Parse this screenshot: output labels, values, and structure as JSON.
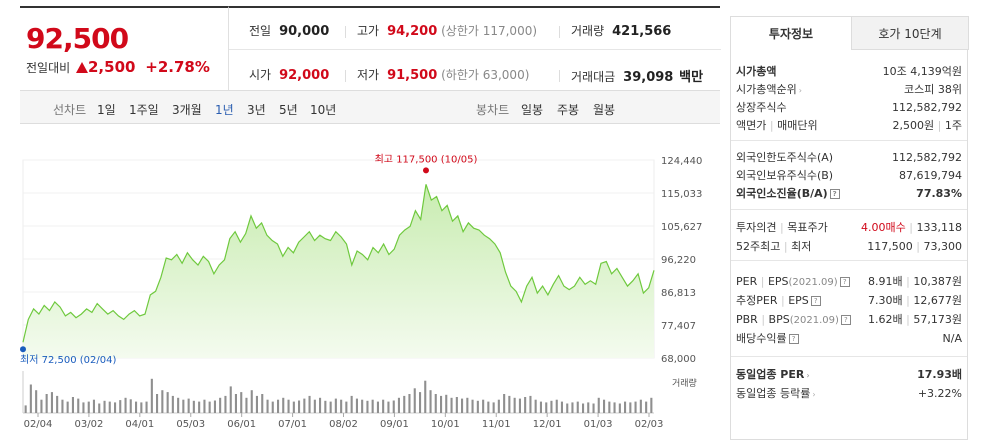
{
  "header": {
    "current_price": "92,500",
    "change_label": "전일대비",
    "change_amount": "2,500",
    "change_pct": "+2.78%"
  },
  "summary": {
    "prev_close_label": "전일",
    "prev_close": "90,000",
    "high_label": "고가",
    "high": "94,200",
    "upper_limit": "(상한가 117,000)",
    "volume_label": "거래량",
    "volume": "421,566",
    "open_label": "시가",
    "open": "92,000",
    "low_label": "저가",
    "low": "91,500",
    "lower_limit": "(하한가 63,000)",
    "amount_label": "거래대금",
    "amount": "39,098",
    "amount_unit": "백만"
  },
  "toolbar": {
    "line_chart_label": "선차트",
    "periods": [
      "1일",
      "1주일",
      "3개월",
      "1년",
      "3년",
      "5년",
      "10년"
    ],
    "selected_period": "1년",
    "candle_label": "봉차트",
    "candles": [
      "일봉",
      "주봉",
      "월봉"
    ]
  },
  "chart_data": {
    "type": "area",
    "y_ticks": [
      "124,440",
      "115,033",
      "105,627",
      "96,220",
      "86,813",
      "77,407",
      "68,000"
    ],
    "ylim": [
      68000,
      124440
    ],
    "x_ticks": [
      "02/04",
      "03/02",
      "04/01",
      "05/03",
      "06/01",
      "07/01",
      "08/02",
      "09/01",
      "10/01",
      "11/01",
      "12/01",
      "01/03",
      "02/03"
    ],
    "max_label": "최고 117,500 (10/05)",
    "min_label": "최저 72,500 (02/04)",
    "volume_label": "거래량",
    "colors": {
      "line": "#6fc93e",
      "fill_top": "#c8ecb0",
      "max": "#d1091a",
      "min": "#1a5dbd"
    },
    "series": [
      {
        "values": [
          72500,
          79000,
          82000,
          80500,
          83000,
          81500,
          84000,
          82500,
          80000,
          81000,
          79500,
          80500,
          82000,
          81000,
          83500,
          82000,
          80500,
          81500,
          80000,
          79000,
          80500,
          81500,
          80000,
          80500,
          86000,
          87000,
          91000,
          96500,
          96000,
          97500,
          95000,
          98000,
          96000,
          94500,
          97000,
          95500,
          92000,
          94500,
          96000,
          102000,
          104000,
          101000,
          103500,
          108500,
          105000,
          106500,
          103000,
          101500,
          100500,
          97000,
          99500,
          98000,
          101000,
          102500,
          104000,
          101500,
          103000,
          102000,
          101500,
          104000,
          102500,
          100500,
          94500,
          98500,
          97500,
          96000,
          99500,
          98000,
          100500,
          97500,
          99000,
          103000,
          104500,
          105500,
          110000,
          107500,
          117500,
          113000,
          114000,
          110000,
          111500,
          107000,
          108500,
          104000,
          106500,
          105000,
          104500,
          103000,
          102000,
          100500,
          98000,
          92500,
          88500,
          87000,
          84000,
          88500,
          91000,
          86500,
          88500,
          86000,
          89000,
          91500,
          88500,
          87500,
          88500,
          91000,
          89000,
          90000,
          89000,
          95000,
          95500,
          92000,
          93500,
          91000,
          88500,
          90000,
          92000,
          86500,
          88000,
          93000
        ]
      }
    ],
    "volumes": [
      0.2,
      0.75,
      0.6,
      0.35,
      0.5,
      0.55,
      0.45,
      0.35,
      0.3,
      0.42,
      0.38,
      0.28,
      0.3,
      0.35,
      0.25,
      0.32,
      0.3,
      0.28,
      0.34,
      0.4,
      0.36,
      0.3,
      0.28,
      0.3,
      0.9,
      0.5,
      0.6,
      0.55,
      0.45,
      0.4,
      0.35,
      0.38,
      0.32,
      0.3,
      0.35,
      0.3,
      0.33,
      0.4,
      0.45,
      0.7,
      0.5,
      0.55,
      0.4,
      0.6,
      0.45,
      0.5,
      0.35,
      0.3,
      0.35,
      0.4,
      0.35,
      0.3,
      0.33,
      0.38,
      0.45,
      0.35,
      0.4,
      0.32,
      0.3,
      0.38,
      0.35,
      0.3,
      0.45,
      0.38,
      0.35,
      0.32,
      0.35,
      0.3,
      0.35,
      0.3,
      0.33,
      0.4,
      0.45,
      0.5,
      0.65,
      0.55,
      0.85,
      0.6,
      0.5,
      0.45,
      0.48,
      0.4,
      0.42,
      0.38,
      0.4,
      0.35,
      0.32,
      0.35,
      0.3,
      0.28,
      0.35,
      0.5,
      0.45,
      0.4,
      0.38,
      0.42,
      0.45,
      0.35,
      0.3,
      0.28,
      0.32,
      0.35,
      0.3,
      0.25,
      0.28,
      0.3,
      0.25,
      0.28,
      0.25,
      0.4,
      0.35,
      0.3,
      0.28,
      0.25,
      0.3,
      0.28,
      0.3,
      0.35,
      0.3,
      0.4
    ]
  },
  "panel": {
    "tab_info": "투자정보",
    "tab_quote": "호가 10단계",
    "market_cap_label": "시가총액",
    "market_cap": "10조 4,139억원",
    "rank_label": "시가총액순위",
    "rank": "코스피 38위",
    "shares_label": "상장주식수",
    "shares": "112,582,792",
    "par_label": "액면가",
    "unit_label": "매매단위",
    "par_value": "2,500원",
    "unit_value": "1주",
    "foreign_limit_label": "외국인한도주식수(A)",
    "foreign_limit": "112,582,792",
    "foreign_hold_label": "외국인보유주식수(B)",
    "foreign_hold": "87,619,794",
    "foreign_ratio_label": "외국인소진율(B/A)",
    "foreign_ratio": "77.83%",
    "opinion_label": "투자의견",
    "target_label": "목표주가",
    "opinion": "4.00매수",
    "target": "133,118",
    "w52_label": "52주최고",
    "w52_low_label": "최저",
    "w52_high": "117,500",
    "w52_low": "73,300",
    "per_label": "PER",
    "eps_label": "EPS",
    "per_period": "(2021.09)",
    "per": "8.91배",
    "eps": "10,387원",
    "est_per_label": "추정PER",
    "est_eps_label": "EPS",
    "est_per": "7.30배",
    "est_eps": "12,677원",
    "pbr_label": "PBR",
    "bps_label": "BPS",
    "pbr_period": "(2021.09)",
    "pbr": "1.62배",
    "bps": "57,173원",
    "div_label": "배당수익률",
    "div": "N/A",
    "sector_per_label": "동일업종 PER",
    "sector_per": "17.93배",
    "sector_rate_label": "동일업종 등락률",
    "sector_rate": "+3.22%"
  }
}
